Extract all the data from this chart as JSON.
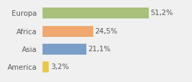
{
  "categories": [
    "America",
    "Asia",
    "Africa",
    "Europa"
  ],
  "values": [
    3.2,
    21.1,
    24.5,
    51.2
  ],
  "labels": [
    "3,2%",
    "21,1%",
    "24,5%",
    "51,2%"
  ],
  "bar_colors": [
    "#e8c84a",
    "#7b9ec9",
    "#f0a870",
    "#a8c07a"
  ],
  "background_color": "#f0f0f0",
  "xlim": [
    0,
    70
  ],
  "bar_height": 0.6,
  "label_fontsize": 7.5,
  "tick_fontsize": 7.5,
  "label_color": "#555555",
  "tick_color": "#555555"
}
